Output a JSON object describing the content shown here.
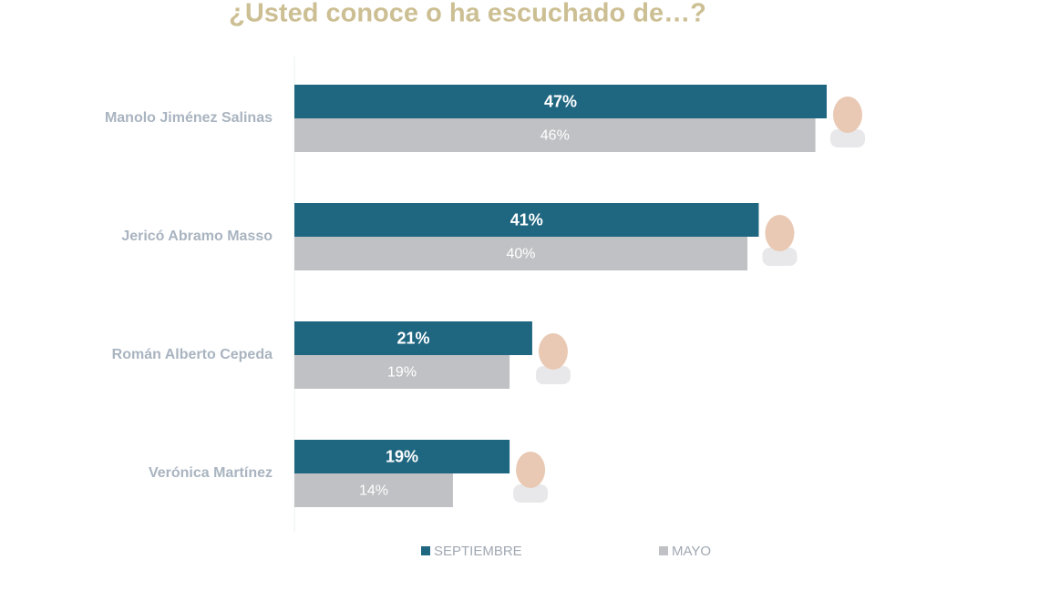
{
  "chart_data": {
    "type": "bar",
    "orientation": "horizontal",
    "title": "¿Usted conoce o ha escuchado de…?",
    "categories": [
      "Manolo Jiménez Salinas",
      "Jericó Abramo Masso",
      "Román Alberto Cepeda",
      "Verónica Martínez"
    ],
    "series": [
      {
        "name": "SEPTIEMBRE",
        "color": "#1f6680",
        "values": [
          47,
          41,
          21,
          19
        ],
        "value_labels": [
          "47%",
          "41%",
          "21%",
          "19%"
        ]
      },
      {
        "name": "MAYO",
        "color": "#bfc1c4",
        "values": [
          46,
          40,
          19,
          14
        ],
        "value_labels": [
          "46%",
          "40%",
          "19%",
          "14%"
        ]
      }
    ]
  }
}
